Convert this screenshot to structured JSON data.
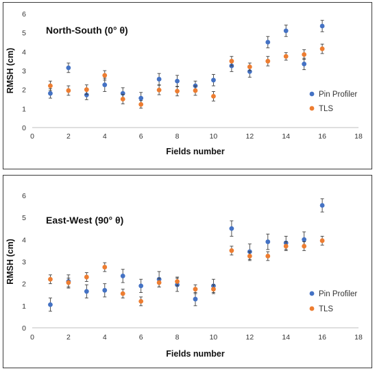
{
  "chart_data": [
    {
      "type": "scatter",
      "title": "North-South (0° θ)",
      "xlabel": "Fields number",
      "ylabel": "RMSH (cm)",
      "xlim": [
        0,
        18
      ],
      "ylim": [
        0,
        6
      ],
      "xticks": [
        "0",
        "2",
        "4",
        "6",
        "8",
        "10",
        "12",
        "14",
        "16",
        "18"
      ],
      "yticks": [
        "0",
        "1",
        "2",
        "3",
        "4",
        "5",
        "6"
      ],
      "legend_position": "right",
      "grid": false,
      "x": [
        1,
        2,
        3,
        4,
        5,
        6,
        7,
        8,
        9,
        10,
        11,
        12,
        13,
        14,
        15,
        16
      ],
      "series": [
        {
          "name": "Pin Profiler",
          "color": "#4472C4",
          "values": [
            1.8,
            3.15,
            1.72,
            2.25,
            1.8,
            1.55,
            2.55,
            2.45,
            2.2,
            2.5,
            3.25,
            2.95,
            4.5,
            5.1,
            3.35,
            5.35
          ],
          "errors": [
            0.25,
            0.25,
            0.25,
            0.35,
            0.3,
            0.3,
            0.3,
            0.3,
            0.25,
            0.3,
            0.3,
            0.3,
            0.3,
            0.3,
            0.3,
            0.3
          ]
        },
        {
          "name": "TLS",
          "color": "#ED7D31",
          "values": [
            2.2,
            1.95,
            2.0,
            2.75,
            1.5,
            1.22,
            1.98,
            1.92,
            1.95,
            1.65,
            3.5,
            3.2,
            3.5,
            3.75,
            3.85,
            4.15
          ],
          "errors": [
            0.25,
            0.25,
            0.25,
            0.25,
            0.25,
            0.2,
            0.25,
            0.25,
            0.25,
            0.25,
            0.25,
            0.2,
            0.25,
            0.2,
            0.25,
            0.25
          ]
        }
      ]
    },
    {
      "type": "scatter",
      "title": "East-West (90° θ)",
      "xlabel": "Fields number",
      "ylabel": "RMSH (cm)",
      "xlim": [
        0,
        18
      ],
      "ylim": [
        0,
        6
      ],
      "xticks": [
        "0",
        "2",
        "4",
        "6",
        "8",
        "10",
        "12",
        "14",
        "16",
        "18"
      ],
      "yticks": [
        "0",
        "1",
        "2",
        "3",
        "4",
        "5",
        "6"
      ],
      "legend_position": "right",
      "grid": false,
      "x": [
        1,
        2,
        3,
        4,
        5,
        6,
        7,
        8,
        9,
        10,
        11,
        12,
        13,
        14,
        15,
        16
      ],
      "series": [
        {
          "name": "Pin Profiler",
          "color": "#4472C4",
          "values": [
            1.05,
            2.1,
            1.65,
            1.7,
            2.35,
            1.9,
            2.2,
            1.95,
            1.3,
            1.9,
            4.5,
            3.45,
            3.9,
            3.85,
            4.0,
            5.55
          ],
          "errors": [
            0.3,
            0.3,
            0.3,
            0.3,
            0.3,
            0.3,
            0.35,
            0.3,
            0.3,
            0.3,
            0.35,
            0.35,
            0.35,
            0.3,
            0.35,
            0.3
          ]
        },
        {
          "name": "TLS",
          "color": "#ED7D31",
          "values": [
            2.2,
            2.05,
            2.3,
            2.75,
            1.55,
            1.2,
            2.05,
            2.1,
            1.75,
            1.75,
            3.5,
            3.25,
            3.25,
            3.7,
            3.7,
            3.95
          ],
          "errors": [
            0.2,
            0.2,
            0.2,
            0.2,
            0.2,
            0.2,
            0.2,
            0.2,
            0.2,
            0.2,
            0.2,
            0.2,
            0.2,
            0.2,
            0.2,
            0.2
          ]
        }
      ]
    }
  ]
}
